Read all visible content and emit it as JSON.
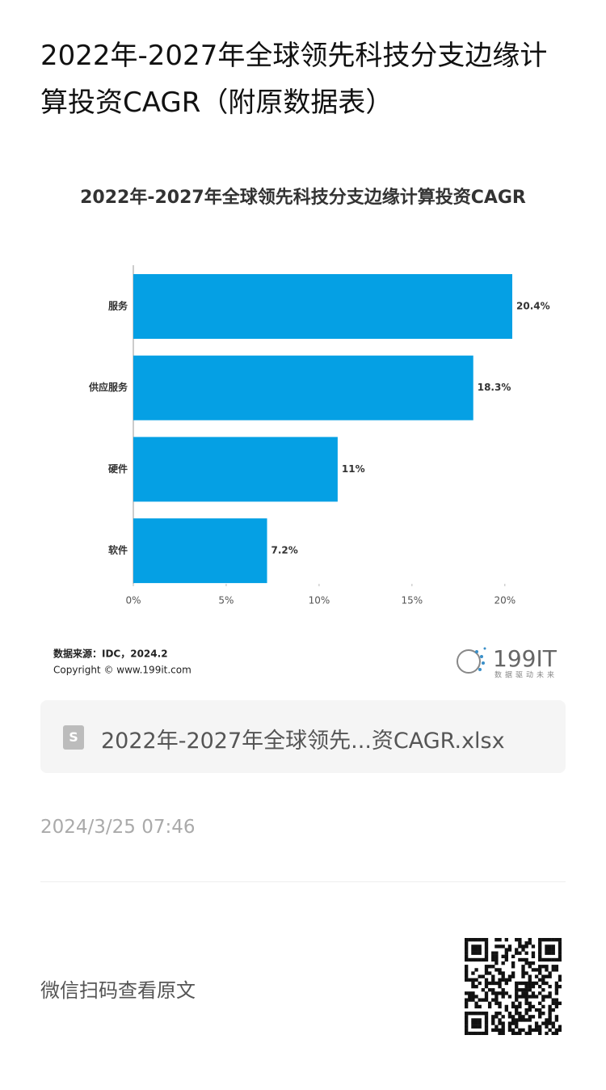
{
  "page_title": "2022年-2027年全球领先科技分支边缘计算投资CAGR（附原数据表）",
  "chart_data": {
    "type": "bar",
    "orientation": "horizontal",
    "title": "2022年-2027年全球领先科技分支边缘计算投资CAGR",
    "categories": [
      "服务",
      "供应服务",
      "硬件",
      "软件"
    ],
    "values": [
      20.4,
      18.3,
      11,
      7.2
    ],
    "value_labels": [
      "20.4%",
      "18.3%",
      "11%",
      "7.2%"
    ],
    "color": "#05a0e4",
    "xlim": [
      0,
      20.4
    ],
    "xticks": [
      {
        "value": 0,
        "label": "0%"
      },
      {
        "value": 5,
        "label": "5%"
      },
      {
        "value": 10,
        "label": "10%"
      },
      {
        "value": 15,
        "label": "15%"
      },
      {
        "value": 20,
        "label": "20%"
      }
    ],
    "source": "数据来源：IDC，2024.2",
    "copyright": "Copyright © www.199it.com",
    "logo": {
      "name": "199IT",
      "slogan": "数据驱动未来"
    }
  },
  "file_card": {
    "filename": "2022年-2027年全球领先...资CAGR.xlsx"
  },
  "date": "2024/3/25 07:46",
  "footer": {
    "text": "微信扫码查看原文"
  }
}
